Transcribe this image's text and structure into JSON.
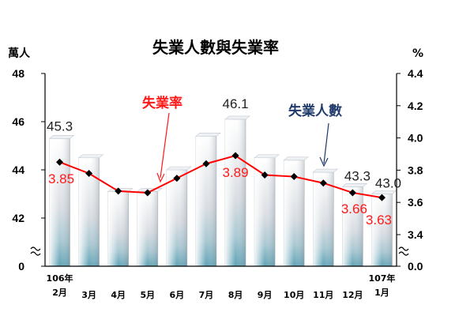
{
  "chart_data": {
    "type": "bar+line",
    "title": "失業人數與失業率",
    "left_unit": "萬人",
    "right_unit": "%",
    "categories": [
      {
        "line1": "106年",
        "line2": "2月"
      },
      {
        "line1": "",
        "line2": "3月"
      },
      {
        "line1": "",
        "line2": "4月"
      },
      {
        "line1": "",
        "line2": "5月"
      },
      {
        "line1": "",
        "line2": "6月"
      },
      {
        "line1": "",
        "line2": "7月"
      },
      {
        "line1": "",
        "line2": "8月"
      },
      {
        "line1": "",
        "line2": "9月"
      },
      {
        "line1": "",
        "line2": "10月"
      },
      {
        "line1": "",
        "line2": "11月"
      },
      {
        "line1": "",
        "line2": "12月"
      },
      {
        "line1": "107年",
        "line2": "1月"
      }
    ],
    "unemployed": {
      "name": "失業人數",
      "values": [
        45.3,
        44.5,
        43.1,
        43.1,
        44.0,
        45.4,
        46.1,
        44.5,
        44.4,
        43.9,
        43.3,
        43.0
      ],
      "labeled_points": [
        {
          "index": 0,
          "text": "45.3"
        },
        {
          "index": 6,
          "text": "46.1"
        },
        {
          "index": 10,
          "text": "43.3"
        },
        {
          "index": 11,
          "text": "43.0"
        }
      ]
    },
    "rate": {
      "name": "失業率",
      "values": [
        3.85,
        3.78,
        3.67,
        3.66,
        3.75,
        3.84,
        3.89,
        3.77,
        3.76,
        3.72,
        3.66,
        3.63
      ],
      "labeled_points": [
        {
          "index": 0,
          "text": "3.85"
        },
        {
          "index": 6,
          "text": "3.89"
        },
        {
          "index": 10,
          "text": "3.66"
        },
        {
          "index": 11,
          "text": "3.63"
        }
      ]
    },
    "left_axis": {
      "ticks": [
        "0",
        "42",
        "44",
        "46",
        "48"
      ],
      "range": [
        41,
        48
      ],
      "break": true
    },
    "right_axis": {
      "ticks": [
        "0.0",
        "3.4",
        "3.6",
        "3.8",
        "4.0",
        "4.2",
        "4.4"
      ],
      "range": [
        3.3,
        4.4
      ],
      "break": true
    },
    "grid": false,
    "colors": {
      "line": "#ff0000",
      "rate_text": "#ff1a1a",
      "emp_text": "#1f3a6b",
      "marker": "#000000"
    }
  }
}
